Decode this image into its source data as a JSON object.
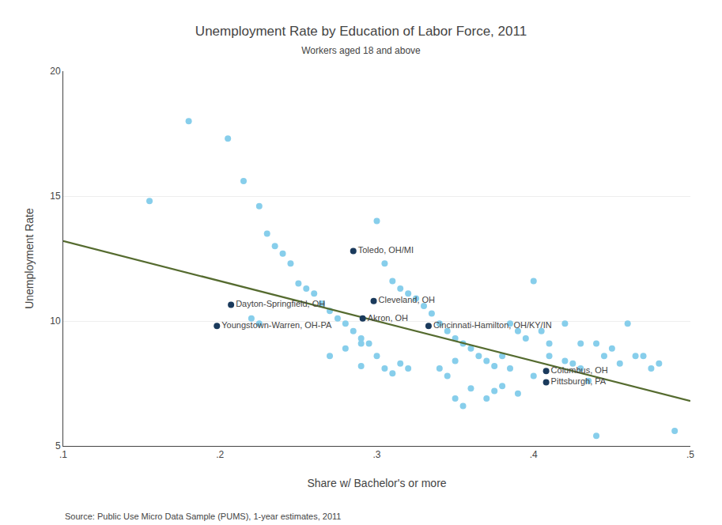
{
  "chart_data": {
    "type": "scatter",
    "title": "Unemployment Rate by Education of Labor Force, 2011",
    "subtitle": "Workers aged 18 and above",
    "x_label": "Share w/ Bachelor's or more",
    "y_label": "Unemployment Rate",
    "source": "Source: Public Use Micro Data Sample (PUMS), 1-year estimates, 2011",
    "xlim": [
      0.1,
      0.5
    ],
    "ylim": [
      5,
      20
    ],
    "xticks": [
      {
        "value": 0.1,
        "label": ".1"
      },
      {
        "value": 0.2,
        "label": ".2"
      },
      {
        "value": 0.3,
        "label": ".3"
      },
      {
        "value": 0.4,
        "label": ".4"
      },
      {
        "value": 0.5,
        "label": ".5"
      }
    ],
    "yticks": [
      5,
      10,
      15,
      20
    ],
    "grid": true,
    "series": [
      {
        "type": "scatter",
        "color": "#87ceeb",
        "x": [
          0.155,
          0.18,
          0.205,
          0.215,
          0.225,
          0.23,
          0.235,
          0.24,
          0.245,
          0.25,
          0.255,
          0.26,
          0.265,
          0.27,
          0.275,
          0.28,
          0.285,
          0.29,
          0.295,
          0.22,
          0.225,
          0.27,
          0.28,
          0.29,
          0.3,
          0.305,
          0.31,
          0.315,
          0.32,
          0.325,
          0.33,
          0.335,
          0.34,
          0.345,
          0.35,
          0.355,
          0.36,
          0.365,
          0.37,
          0.375,
          0.38,
          0.385,
          0.39,
          0.395,
          0.4,
          0.405,
          0.41,
          0.42,
          0.425,
          0.43,
          0.435,
          0.44,
          0.445,
          0.45,
          0.455,
          0.46,
          0.465,
          0.47,
          0.475,
          0.48,
          0.49,
          0.44,
          0.35,
          0.355,
          0.36,
          0.37,
          0.375,
          0.3,
          0.305,
          0.31,
          0.315,
          0.32,
          0.38,
          0.39,
          0.4,
          0.41,
          0.42,
          0.43,
          0.385,
          0.34,
          0.345,
          0.35,
          0.29
        ],
        "values": [
          14.8,
          18.0,
          17.3,
          15.6,
          14.6,
          13.5,
          13.0,
          12.7,
          12.3,
          11.5,
          11.3,
          11.1,
          10.7,
          10.4,
          10.1,
          9.9,
          9.6,
          9.3,
          9.1,
          10.1,
          9.9,
          8.6,
          8.9,
          9.1,
          14.0,
          12.3,
          11.6,
          11.3,
          11.1,
          10.9,
          10.6,
          10.3,
          9.9,
          9.6,
          9.3,
          9.1,
          8.9,
          8.6,
          8.4,
          8.2,
          8.6,
          8.1,
          9.6,
          9.3,
          11.6,
          9.6,
          9.1,
          9.9,
          8.3,
          8.1,
          7.6,
          9.1,
          8.6,
          8.9,
          8.3,
          9.9,
          8.6,
          8.6,
          8.1,
          8.3,
          5.6,
          5.4,
          6.9,
          6.6,
          7.3,
          6.9,
          7.2,
          8.6,
          8.1,
          7.9,
          8.3,
          8.1,
          7.4,
          7.1,
          7.8,
          8.6,
          8.4,
          9.1,
          9.9,
          8.1,
          7.8,
          8.4,
          8.2
        ]
      },
      {
        "type": "line",
        "color": "#556b2f",
        "x": [
          0.1,
          0.5
        ],
        "values": [
          13.2,
          6.8
        ]
      },
      {
        "type": "scatter",
        "color": "#1a3a5c",
        "x": [
          0.285,
          0.207,
          0.198,
          0.298,
          0.291,
          0.333,
          0.408,
          0.408
        ],
        "values": [
          12.8,
          10.65,
          9.8,
          10.8,
          10.1,
          9.8,
          8.0,
          7.55
        ],
        "labels": [
          "Toledo, OH/MI",
          "Dayton-Springfield, OH",
          "Youngstown-Warren, OH-PA",
          "Cleveland, OH",
          "Akron, OH",
          "Cincinnati-Hamilton, OH/KY/IN",
          "Columbus, OH",
          "Pittsburgh, PA"
        ]
      }
    ]
  }
}
